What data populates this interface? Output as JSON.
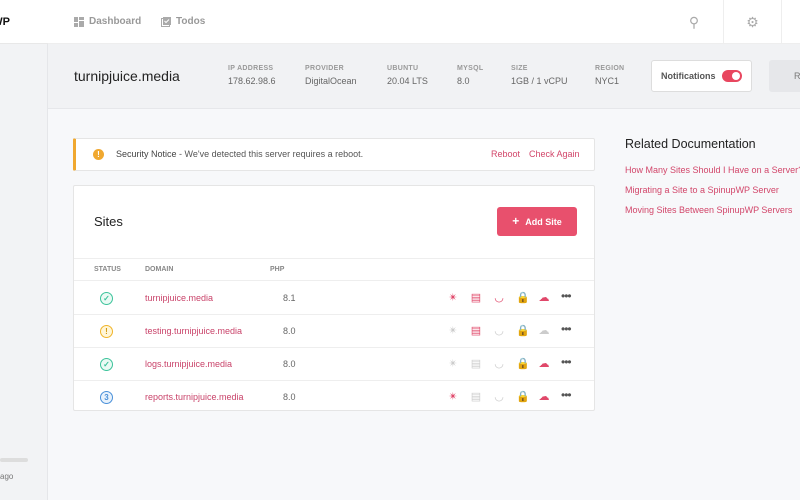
{
  "brand": {
    "logo_text": "SpinupWP",
    "sidebar_footer": "ago"
  },
  "topnav": {
    "items": [
      {
        "label": "Dashboard",
        "icon": "dashboard-icon"
      },
      {
        "label": "Todos",
        "icon": "todos-icon"
      }
    ],
    "right_icons": [
      "search-icon",
      "settings-icon",
      "user-icon"
    ]
  },
  "server": {
    "name": "turnipjuice.media",
    "meta": [
      {
        "label": "IP ADDRESS",
        "value": "178.62.98.6"
      },
      {
        "label": "PROVIDER",
        "value": "DigitalOcean"
      },
      {
        "label": "UBUNTU",
        "value": "20.04 LTS"
      },
      {
        "label": "MYSQL",
        "value": "8.0"
      },
      {
        "label": "SIZE",
        "value": "1GB / 1 vCPU"
      },
      {
        "label": "REGION",
        "value": "NYC1"
      }
    ],
    "notifications_label": "Notifications",
    "notifications_on": true,
    "action_label": "R"
  },
  "notice": {
    "title": "Security Notice",
    "message": " - We've detected this server requires a reboot.",
    "reboot": "Reboot",
    "check": "Check Again"
  },
  "sites": {
    "title": "Sites",
    "add_label": "Add Site",
    "add_icon": "+",
    "columns": {
      "status": "STATUS",
      "domain": "DOMAIN",
      "php": "PHP"
    },
    "rows": [
      {
        "status": "ok",
        "status_glyph": "✓",
        "domain": "turnipjuice.media",
        "php": "8.1",
        "actions": [
          true,
          true,
          true,
          true,
          true
        ]
      },
      {
        "status": "warn",
        "status_glyph": "!",
        "domain": "testing.turnipjuice.media",
        "php": "8.0",
        "actions": [
          false,
          true,
          false,
          true,
          false
        ]
      },
      {
        "status": "ok",
        "status_glyph": "✓",
        "domain": "logs.turnipjuice.media",
        "php": "8.0",
        "actions": [
          false,
          false,
          false,
          true,
          true
        ]
      },
      {
        "status": "info",
        "status_glyph": "3",
        "domain": "reports.turnipjuice.media",
        "php": "8.0",
        "actions": [
          true,
          false,
          false,
          true,
          true
        ]
      }
    ],
    "action_icons": [
      "health-icon",
      "logs-icon",
      "performance-icon",
      "ssl-lock-icon",
      "backup-cloud-icon"
    ]
  },
  "docs": {
    "title": "Related Documentation",
    "links": [
      "How Many Sites Should I Have on a Server?",
      "Migrating a Site to a SpinupWP Server",
      "Moving Sites Between SpinupWP Servers"
    ]
  },
  "colors": {
    "accent": "#e8506d",
    "warning": "#f0a830",
    "success": "#3cc39b",
    "info": "#4a90d9"
  }
}
